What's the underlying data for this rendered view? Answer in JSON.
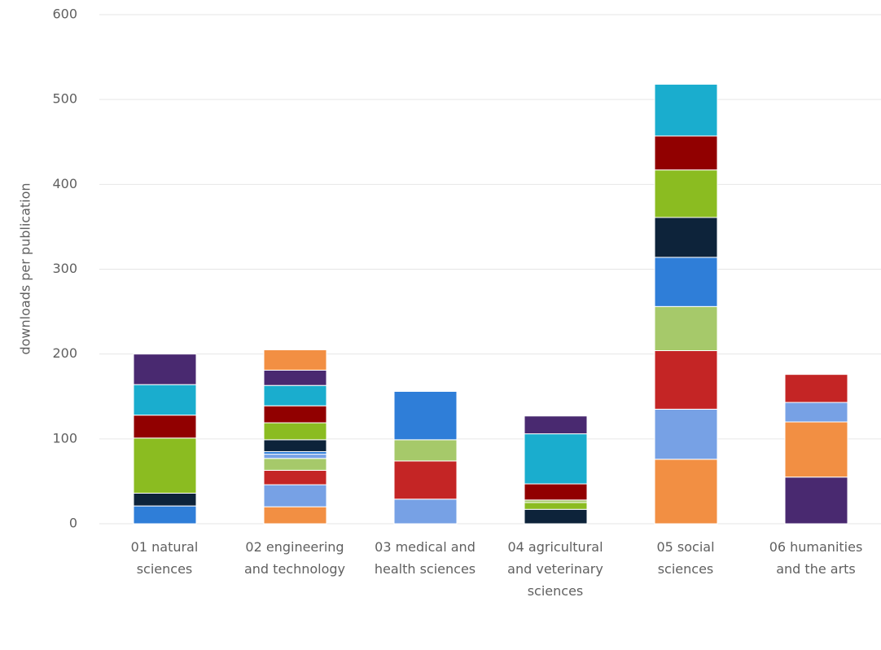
{
  "chart_data": {
    "type": "stacked_bar",
    "y_label": "downloads per publication",
    "categories": [
      "01 natural sciences",
      "02 engineering and technology",
      "03 medical and health sciences",
      "04 agricultural and veterinary sciences",
      "05 social sciences",
      "06 humanities and the arts"
    ],
    "segments": [
      [
        {
          "value": 21,
          "color": "#2f7ed8"
        },
        {
          "value": 15,
          "color": "#0d233a"
        },
        {
          "value": 65,
          "color": "#8bbc21"
        },
        {
          "value": 27,
          "color": "#910000"
        },
        {
          "value": 36,
          "color": "#1aadce"
        },
        {
          "value": 36,
          "color": "#492970"
        }
      ],
      [
        {
          "value": 20,
          "color": "#f28f43"
        },
        {
          "value": 26,
          "color": "#77a1e5"
        },
        {
          "value": 17,
          "color": "#c42525"
        },
        {
          "value": 14,
          "color": "#a6c96a"
        },
        {
          "value": 5,
          "color": "#77a1e5"
        },
        {
          "value": 3,
          "color": "#2f7ed8"
        },
        {
          "value": 14,
          "color": "#0d233a"
        },
        {
          "value": 20,
          "color": "#8bbc21"
        },
        {
          "value": 20,
          "color": "#910000"
        },
        {
          "value": 24,
          "color": "#1aadce"
        },
        {
          "value": 18,
          "color": "#492970"
        },
        {
          "value": 24,
          "color": "#f28f43"
        }
      ],
      [
        {
          "value": 29,
          "color": "#77a1e5"
        },
        {
          "value": 45,
          "color": "#c42525"
        },
        {
          "value": 25,
          "color": "#a6c96a"
        },
        {
          "value": 57,
          "color": "#2f7ed8"
        }
      ],
      [
        {
          "value": 17,
          "color": "#0d233a"
        },
        {
          "value": 8,
          "color": "#8bbc21"
        },
        {
          "value": 3,
          "color": "#a6c96a"
        },
        {
          "value": 19,
          "color": "#910000"
        },
        {
          "value": 59,
          "color": "#1aadce"
        },
        {
          "value": 21,
          "color": "#492970"
        }
      ],
      [
        {
          "value": 76,
          "color": "#f28f43"
        },
        {
          "value": 59,
          "color": "#77a1e5"
        },
        {
          "value": 69,
          "color": "#c42525"
        },
        {
          "value": 52,
          "color": "#a6c96a"
        },
        {
          "value": 58,
          "color": "#2f7ed8"
        },
        {
          "value": 47,
          "color": "#0d233a"
        },
        {
          "value": 56,
          "color": "#8bbc21"
        },
        {
          "value": 40,
          "color": "#910000"
        },
        {
          "value": 61,
          "color": "#1aadce"
        }
      ],
      [
        {
          "value": 55,
          "color": "#492970"
        },
        {
          "value": 65,
          "color": "#f28f43"
        },
        {
          "value": 23,
          "color": "#77a1e5"
        },
        {
          "value": 33,
          "color": "#c42525"
        }
      ]
    ],
    "ylim": [
      0,
      600
    ],
    "yticks": [
      0,
      100,
      200,
      300,
      400,
      500,
      600
    ],
    "grid": true
  }
}
